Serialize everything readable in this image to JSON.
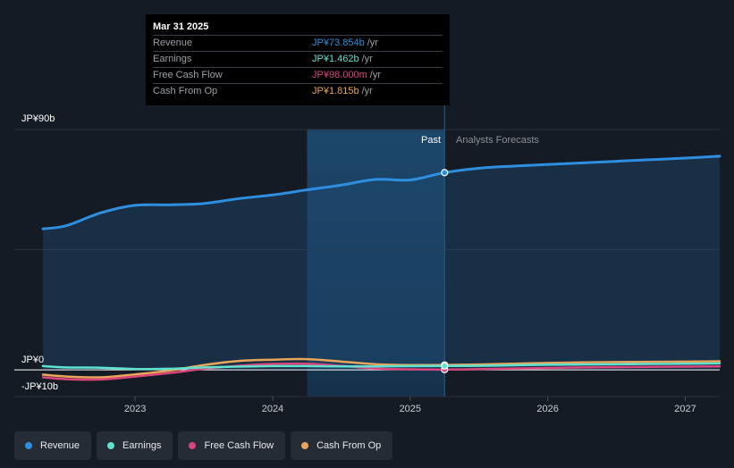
{
  "tooltip": {
    "date": "Mar 31 2025",
    "rows": [
      {
        "label": "Revenue",
        "value": "JP¥73.854b",
        "unit": "/yr",
        "color": "#2e8fe0"
      },
      {
        "label": "Earnings",
        "value": "JP¥1.462b",
        "unit": "/yr",
        "color": "#5fe3cf"
      },
      {
        "label": "Free Cash Flow",
        "value": "JP¥98.000m",
        "unit": "/yr",
        "color": "#d9457c"
      },
      {
        "label": "Cash From Op",
        "value": "JP¥1.815b",
        "unit": "/yr",
        "color": "#e9a55a"
      }
    ]
  },
  "chart_data": {
    "type": "line",
    "y_unit": "JP¥ billions",
    "ylim": [
      -10,
      90
    ],
    "y_tick_labels": [
      {
        "value": 90,
        "label": "JP¥90b"
      },
      {
        "value": 0,
        "label": "JP¥0"
      },
      {
        "value": -10,
        "label": "-JP¥10b"
      }
    ],
    "xlim": [
      2022.33,
      2027.25
    ],
    "x_ticks": [
      2023,
      2024,
      2025,
      2026,
      2027
    ],
    "x_tick_labels": [
      "2023",
      "2024",
      "2025",
      "2026",
      "2027"
    ],
    "past_label": "Past",
    "forecast_label": "Analysts Forecasts",
    "divider_x": 2025.25,
    "highlight_start_x": 2024.25,
    "series": [
      {
        "name": "Revenue",
        "color": "#2e8fe0",
        "fill": true,
        "x": [
          2022.33,
          2022.5,
          2022.75,
          2023.0,
          2023.25,
          2023.5,
          2023.75,
          2024.0,
          2024.25,
          2024.5,
          2024.75,
          2025.0,
          2025.25,
          2025.5,
          2025.75,
          2026.0,
          2026.25,
          2026.5,
          2026.75,
          2027.0,
          2027.25
        ],
        "values": [
          52.8,
          54.0,
          58.8,
          61.6,
          61.8,
          62.3,
          64.1,
          65.5,
          67.4,
          69.2,
          71.3,
          71.1,
          73.854,
          75.5,
          76.3,
          76.9,
          77.5,
          78.1,
          78.7,
          79.3,
          80.0
        ]
      },
      {
        "name": "Earnings",
        "color": "#5fe3cf",
        "x": [
          2022.33,
          2022.5,
          2022.75,
          2023.0,
          2023.25,
          2023.5,
          2023.75,
          2024.0,
          2024.25,
          2024.5,
          2024.75,
          2025.0,
          2025.25,
          2025.5,
          2025.75,
          2026.0,
          2026.25,
          2026.5,
          2026.75,
          2027.0,
          2027.25
        ],
        "values": [
          1.4,
          0.9,
          0.8,
          0.3,
          0.4,
          0.9,
          1.2,
          1.4,
          1.4,
          1.3,
          1.3,
          1.4,
          1.462,
          1.5,
          1.7,
          1.9,
          2.0,
          2.1,
          2.2,
          2.3,
          2.4
        ]
      },
      {
        "name": "Free Cash Flow",
        "color": "#d9457c",
        "x": [
          2022.33,
          2022.5,
          2022.75,
          2023.0,
          2023.25,
          2023.5,
          2023.75,
          2024.0,
          2024.25,
          2024.5,
          2024.75,
          2025.0,
          2025.25,
          2025.5,
          2025.75,
          2026.0,
          2026.25,
          2026.5,
          2026.75,
          2027.0,
          2027.25
        ],
        "values": [
          -2.8,
          -3.5,
          -3.6,
          -2.5,
          -1.2,
          0.4,
          1.5,
          2.2,
          2.3,
          1.5,
          0.5,
          0.2,
          0.098,
          0.3,
          0.5,
          0.7,
          0.9,
          1.0,
          1.1,
          1.2,
          1.3
        ]
      },
      {
        "name": "Cash From Op",
        "color": "#e9a55a",
        "x": [
          2022.33,
          2022.5,
          2022.75,
          2023.0,
          2023.25,
          2023.5,
          2023.75,
          2024.0,
          2024.25,
          2024.5,
          2024.75,
          2025.0,
          2025.25,
          2025.5,
          2025.75,
          2026.0,
          2026.25,
          2026.5,
          2026.75,
          2027.0,
          2027.25
        ],
        "values": [
          -1.8,
          -2.5,
          -2.8,
          -1.7,
          -0.3,
          1.8,
          3.3,
          3.8,
          4.0,
          3.1,
          2.1,
          1.8,
          1.815,
          2.0,
          2.3,
          2.6,
          2.8,
          2.9,
          3.0,
          3.1,
          3.2
        ]
      }
    ]
  },
  "legend": [
    {
      "label": "Revenue",
      "color": "#2e8fe0"
    },
    {
      "label": "Earnings",
      "color": "#5fe3cf"
    },
    {
      "label": "Free Cash Flow",
      "color": "#d9457c"
    },
    {
      "label": "Cash From Op",
      "color": "#e9a55a"
    }
  ]
}
